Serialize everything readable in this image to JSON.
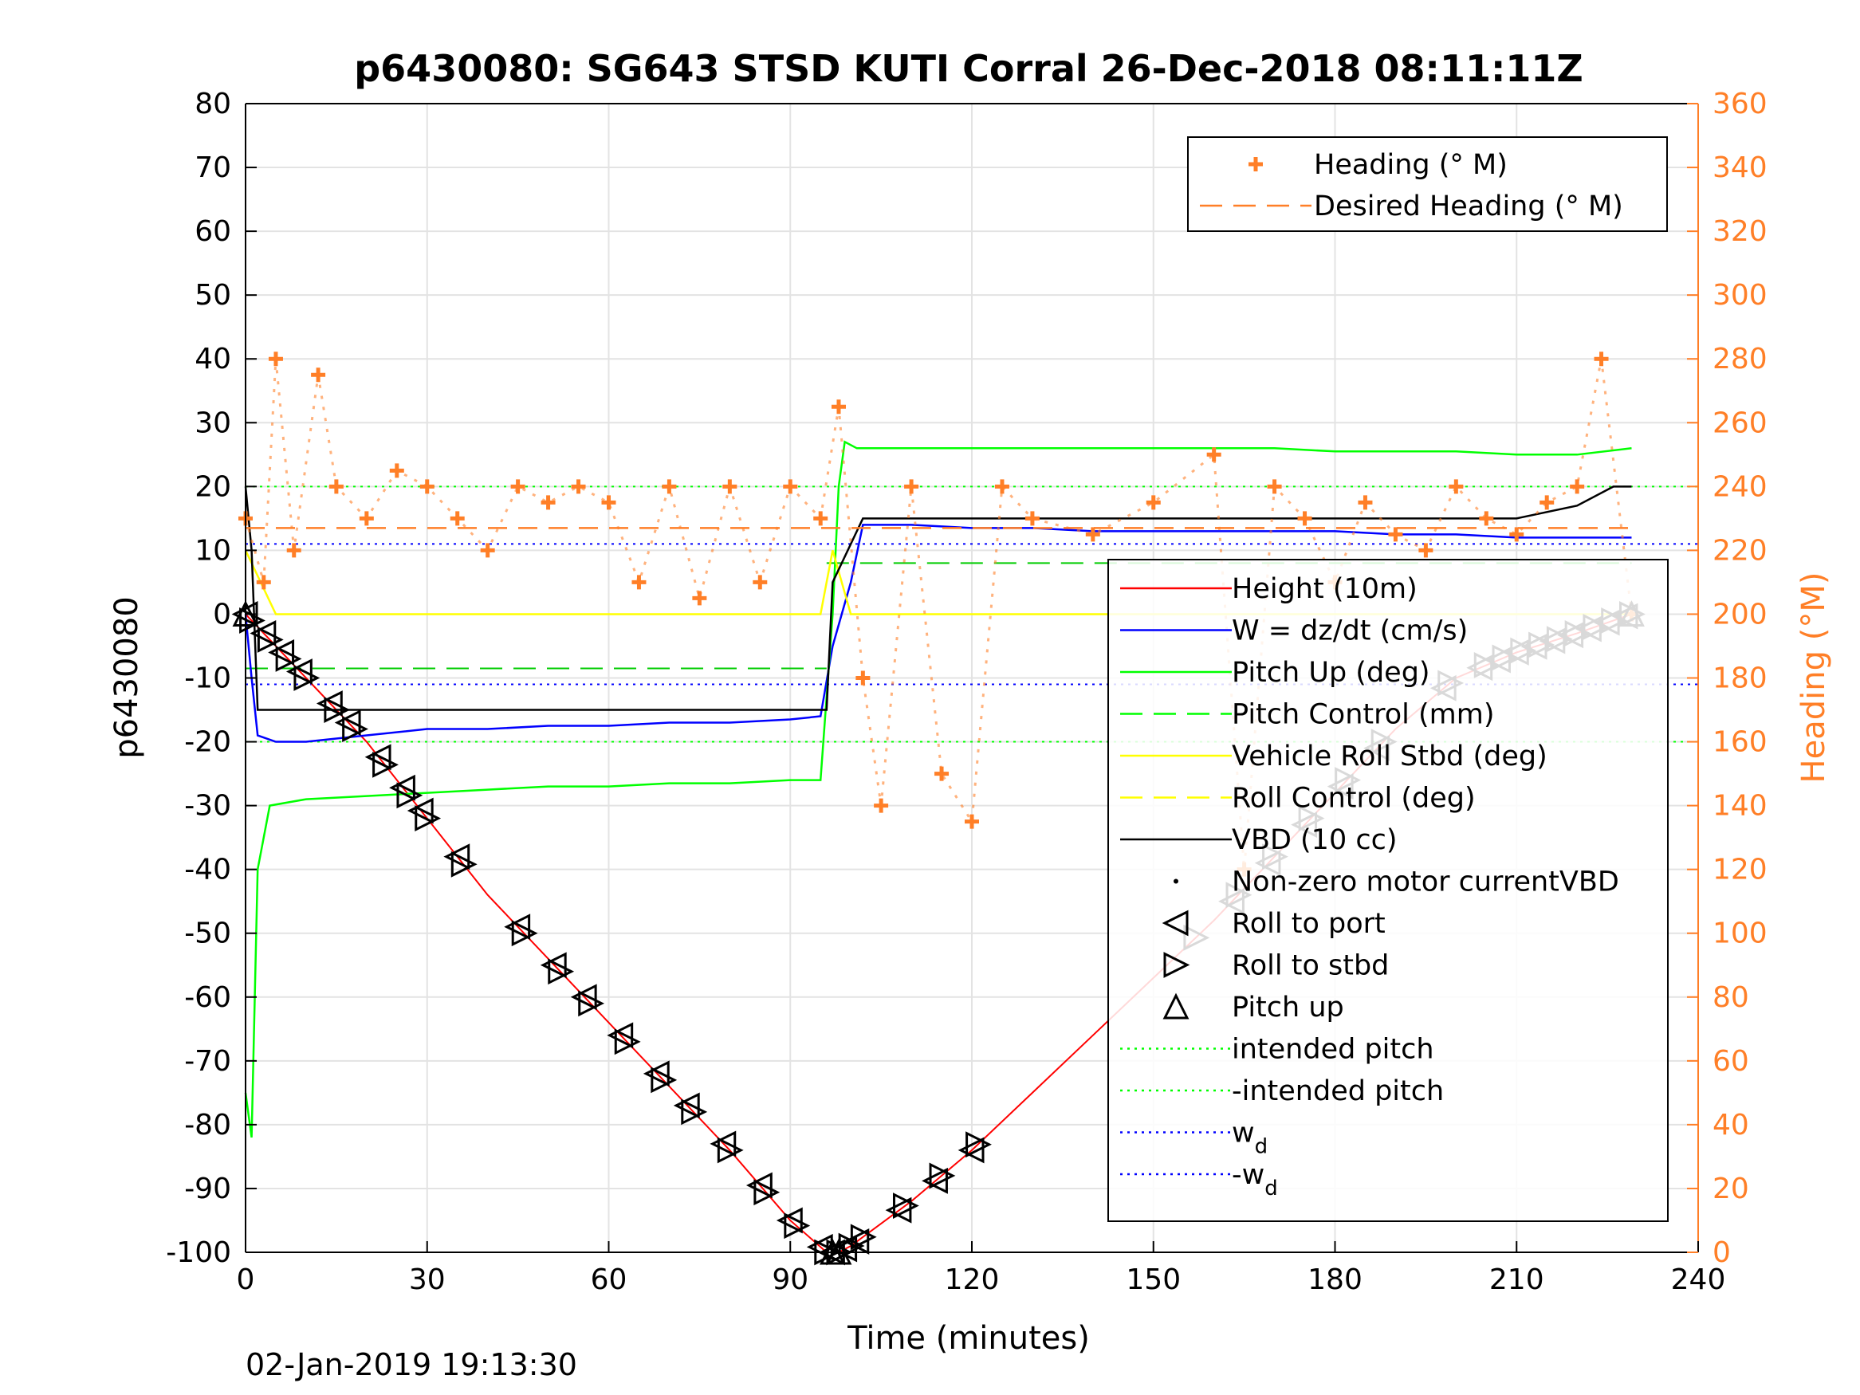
{
  "chart_data": {
    "type": "line",
    "title": "p6430080: SG643 STSD KUTI Corral 26-Dec-2018 08:11:11Z",
    "xlabel": "Time (minutes)",
    "ylabel_left": "p6430080",
    "ylabel_right": "Heading (°M)",
    "xlim": [
      0,
      240
    ],
    "ylim_left": [
      -100,
      80
    ],
    "ylim_right": [
      0,
      360
    ],
    "x_ticks": [
      0,
      30,
      60,
      90,
      120,
      150,
      180,
      210,
      240
    ],
    "y_ticks_left": [
      80,
      70,
      60,
      50,
      40,
      30,
      20,
      10,
      0,
      -10,
      -20,
      -30,
      -40,
      -50,
      -60,
      -70,
      -80,
      -90,
      -100
    ],
    "y_ticks_right": [
      360,
      340,
      320,
      300,
      280,
      260,
      240,
      220,
      200,
      180,
      160,
      140,
      120,
      100,
      80,
      60,
      40,
      20,
      0
    ],
    "grid": true,
    "colors": {
      "height": "#ff0000",
      "w": "#0000ff",
      "pitch": "#00ff00",
      "roll": "#ffff00",
      "vbd": "#000000",
      "heading": "#ff7f27"
    },
    "legend_heading": [
      {
        "label": "Heading (° M)",
        "style": "marker-plus",
        "color": "#ff7f27"
      },
      {
        "label": "Desired Heading (° M)",
        "style": "dashed",
        "color": "#ff7f27"
      }
    ],
    "legend_main": [
      {
        "label": "Height (10m)",
        "style": "solid",
        "color": "#ff0000"
      },
      {
        "label": "W = dz/dt (cm/s)",
        "style": "solid",
        "color": "#0000ff"
      },
      {
        "label": "Pitch Up (deg)",
        "style": "solid",
        "color": "#00ff00"
      },
      {
        "label": "Pitch Control (mm)",
        "style": "dashed",
        "color": "#00ff00"
      },
      {
        "label": "Vehicle Roll Stbd (deg)",
        "style": "solid",
        "color": "#ffff00"
      },
      {
        "label": "Roll Control (deg)",
        "style": "dashed",
        "color": "#ffff00"
      },
      {
        "label": "VBD (10 cc)",
        "style": "solid",
        "color": "#000000"
      },
      {
        "label": "Non-zero motor currentVBD",
        "style": "dot",
        "color": "#000000"
      },
      {
        "label": "Roll to port",
        "style": "tri-left",
        "color": "#000000"
      },
      {
        "label": "Roll to stbd",
        "style": "tri-right",
        "color": "#000000"
      },
      {
        "label": "Pitch up",
        "style": "tri-up",
        "color": "#000000"
      },
      {
        "label": "intended pitch",
        "style": "dotted",
        "color": "#00ff00"
      },
      {
        "label": "-intended pitch",
        "style": "dotted",
        "color": "#00ff00"
      },
      {
        "label": "w",
        "sub": "d",
        "style": "dotted",
        "color": "#0000ff"
      },
      {
        "label": "-w",
        "sub": "d",
        "style": "dotted",
        "color": "#0000ff"
      }
    ],
    "series": [
      {
        "name": "Height (10m)",
        "color": "#ff0000",
        "x": [
          0,
          2,
          5,
          10,
          20,
          30,
          40,
          50,
          60,
          70,
          80,
          90,
          96,
          98,
          100,
          110,
          120,
          130,
          140,
          150,
          160,
          170,
          180,
          190,
          200,
          210,
          220,
          229
        ],
        "y": [
          0,
          -2,
          -5,
          -10,
          -20,
          -32,
          -44,
          -54,
          -64,
          -74,
          -84,
          -95,
          -100,
          -100,
          -99,
          -92,
          -84,
          -75,
          -66,
          -57,
          -48,
          -38,
          -28,
          -18,
          -10,
          -6,
          -3,
          0
        ]
      },
      {
        "name": "W = dz/dt (cm/s)",
        "color": "#0000ff",
        "x": [
          0,
          1,
          2,
          5,
          10,
          20,
          30,
          40,
          50,
          60,
          70,
          80,
          90,
          95,
          97,
          100,
          102,
          110,
          120,
          130,
          140,
          150,
          160,
          170,
          180,
          190,
          200,
          210,
          220,
          229
        ],
        "y": [
          0,
          -10,
          -19,
          -20,
          -20,
          -19,
          -18,
          -18,
          -17.5,
          -17.5,
          -17,
          -17,
          -16.5,
          -16,
          -5,
          5,
          14,
          14,
          13.5,
          13.5,
          13,
          13,
          13,
          13,
          13,
          12.5,
          12.5,
          12,
          12,
          12
        ]
      },
      {
        "name": "Pitch Up (deg)",
        "color": "#00ff00",
        "x": [
          0,
          1,
          2,
          4,
          10,
          20,
          30,
          40,
          50,
          60,
          70,
          80,
          90,
          95,
          97,
          98,
          99,
          101,
          110,
          120,
          130,
          140,
          150,
          160,
          170,
          180,
          190,
          200,
          210,
          220,
          229
        ],
        "y": [
          -75,
          -82,
          -40,
          -30,
          -29,
          -28.5,
          -28,
          -27.5,
          -27,
          -27,
          -26.5,
          -26.5,
          -26,
          -26,
          0,
          20,
          27,
          26,
          26,
          26,
          26,
          26,
          26,
          26,
          26,
          25.5,
          25.5,
          25.5,
          25,
          25,
          26
        ]
      },
      {
        "name": "Vehicle Roll Stbd (deg)",
        "color": "#ffff00",
        "x": [
          0,
          5,
          20,
          30,
          40,
          50,
          60,
          70,
          80,
          90,
          95,
          97,
          100,
          120,
          140,
          160,
          180,
          200,
          210,
          220,
          229
        ],
        "y": [
          10,
          0,
          0,
          0,
          0,
          0,
          0,
          0,
          0,
          0,
          0,
          10,
          0,
          0,
          0,
          0,
          0,
          0,
          0,
          0,
          0
        ]
      },
      {
        "name": "VBD (10 cc)",
        "color": "#000000",
        "x": [
          0,
          1,
          2,
          96,
          97,
          102,
          210,
          220,
          226,
          229
        ],
        "y": [
          20,
          10,
          -15,
          -15,
          5,
          15,
          15,
          17,
          20,
          20
        ]
      },
      {
        "name": "Heading (° M)",
        "color": "#ff7f27",
        "axis": "right",
        "x": [
          0,
          3,
          5,
          8,
          12,
          15,
          20,
          25,
          30,
          35,
          40,
          45,
          50,
          55,
          60,
          65,
          70,
          75,
          80,
          85,
          90,
          95,
          98,
          102,
          105,
          110,
          115,
          120,
          125,
          130,
          140,
          150,
          160,
          165,
          170,
          175,
          180,
          185,
          190,
          195,
          200,
          205,
          210,
          215,
          220,
          224,
          229
        ],
        "y": [
          230,
          210,
          280,
          220,
          275,
          240,
          230,
          245,
          240,
          230,
          220,
          240,
          235,
          240,
          235,
          210,
          240,
          205,
          240,
          210,
          240,
          230,
          265,
          180,
          140,
          240,
          150,
          135,
          240,
          230,
          225,
          235,
          250,
          120,
          240,
          230,
          210,
          235,
          225,
          220,
          240,
          230,
          225,
          235,
          240,
          280,
          200
        ]
      },
      {
        "name": "Desired Heading (° M)",
        "color": "#ff7f27",
        "axis": "right",
        "style": "dashed",
        "x": [
          0,
          229
        ],
        "y": [
          227,
          227
        ]
      }
    ],
    "reference_lines": [
      {
        "label": "intended pitch",
        "y": 20,
        "color": "#00ff00"
      },
      {
        "label": "-intended pitch",
        "y": -20,
        "color": "#00ff00"
      },
      {
        "label": "w_d",
        "y": 11,
        "color": "#0000ff"
      },
      {
        "label": "-w_d",
        "y": -11,
        "color": "#0000ff"
      }
    ],
    "pitch_control_levels": [
      {
        "x": [
          0,
          96
        ],
        "y": -8.5
      },
      {
        "x": [
          96,
          229
        ],
        "y": 8
      }
    ],
    "markers": {
      "roll_to_port_x": [
        0,
        3,
        6,
        9,
        14,
        17,
        22,
        26,
        29,
        35,
        45,
        51,
        56,
        62,
        68,
        73,
        79,
        85,
        90,
        95,
        97,
        99,
        101,
        108,
        114,
        120,
        163,
        169,
        175,
        181,
        187,
        198,
        204,
        207,
        210,
        213,
        216,
        219,
        222,
        225,
        228
      ],
      "roll_to_stbd_x": [
        1,
        4,
        7,
        10,
        15,
        18,
        23,
        27,
        30,
        36,
        46,
        52,
        57,
        63,
        69,
        74,
        80,
        86,
        91,
        96,
        98,
        100,
        102,
        109,
        115,
        121,
        157,
        164,
        170,
        176,
        182,
        188,
        199,
        205,
        208,
        211,
        214,
        217,
        220,
        223,
        226,
        229
      ],
      "pitch_up_x": [
        0,
        97,
        98,
        229
      ]
    }
  },
  "footer": {
    "timestamp": "02-Jan-2019 19:13:30"
  }
}
